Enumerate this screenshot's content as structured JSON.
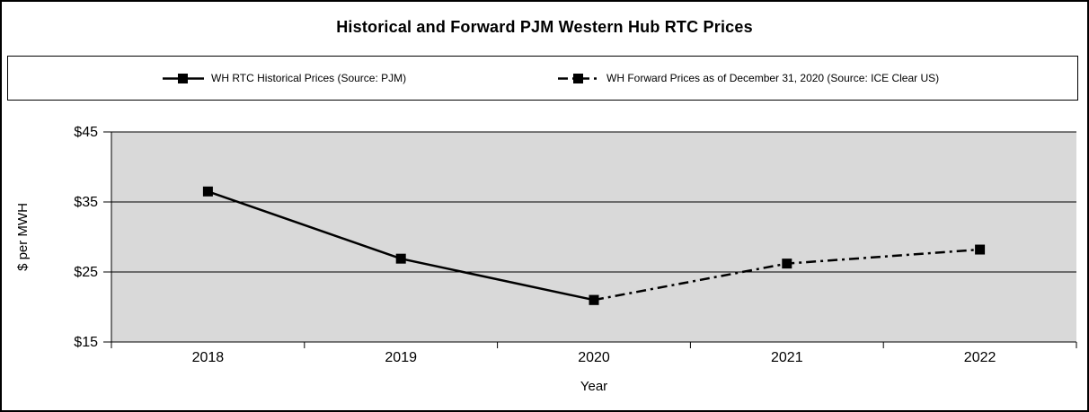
{
  "chart_data": {
    "type": "line",
    "title": "Historical and Forward PJM Western Hub RTC Prices",
    "xlabel": "Year",
    "ylabel": "$ per MWH",
    "categories": [
      "2018",
      "2019",
      "2020",
      "2021",
      "2022"
    ],
    "series": [
      {
        "name": "WH RTC Historical Prices (Source: PJM)",
        "x": [
          "2018",
          "2019",
          "2020"
        ],
        "values": [
          36.5,
          26.9,
          21.0
        ],
        "line_style": "solid",
        "marker": "square"
      },
      {
        "name": "WH Forward Prices as of December 31, 2020 (Source: ICE Clear US)",
        "x": [
          "2020",
          "2021",
          "2022"
        ],
        "values": [
          21.0,
          26.2,
          28.2
        ],
        "line_style": "dash-dot",
        "marker": "square"
      }
    ],
    "ylim": [
      15,
      45
    ],
    "yticks": [
      15,
      25,
      35,
      45
    ],
    "ytick_labels": [
      "$15",
      "$25",
      "$35",
      "$45"
    ],
    "grid": "horizontal",
    "legend_position": "top",
    "colors": {
      "line": "#000000",
      "plot_background": "#D9D9D9",
      "text": "#000000",
      "border": "#000000",
      "page_background": "#FFFFFF"
    }
  }
}
